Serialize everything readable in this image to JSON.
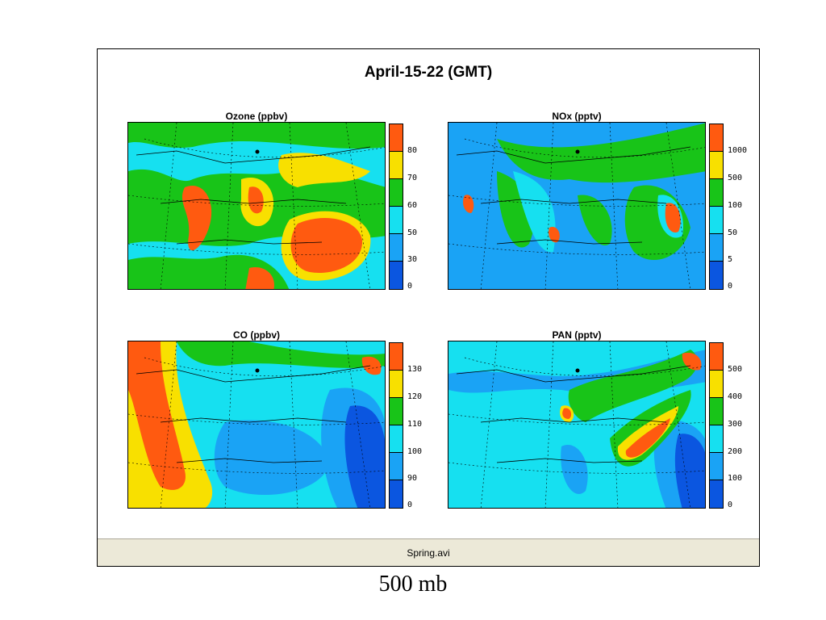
{
  "window": {
    "main_title": "April-15-22 (GMT)",
    "status_filename": "Spring.avi"
  },
  "slide": {
    "caption": "500 mb"
  },
  "colors": {
    "scale": [
      "#0b56e0",
      "#1aa3f5",
      "#16e0f0",
      "#18c418",
      "#f8e000",
      "#ff5a10"
    ]
  },
  "panels": [
    {
      "title": "Ozone (ppbv)",
      "labels": [
        "80",
        "70",
        "60",
        "50",
        "30",
        "0"
      ]
    },
    {
      "title": "NOx (pptv)",
      "labels": [
        "1000",
        "500",
        "100",
        "50",
        "5",
        "0"
      ]
    },
    {
      "title": "CO (ppbv)",
      "labels": [
        "130",
        "120",
        "110",
        "100",
        "90",
        "0"
      ]
    },
    {
      "title": "PAN (pptv)",
      "labels": [
        "500",
        "400",
        "300",
        "200",
        "100",
        "0"
      ]
    }
  ]
}
